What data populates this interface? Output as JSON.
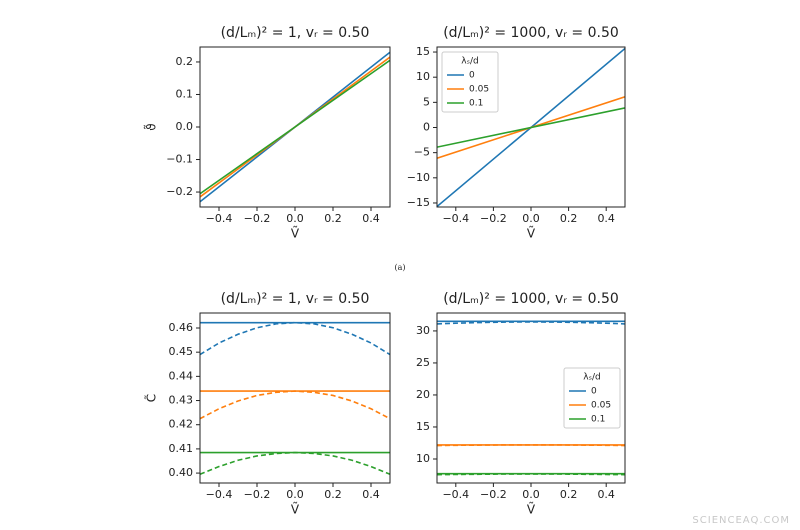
{
  "chart_data": [
    {
      "type": "line",
      "title": "(d/Lₘ)² = 1, vᵣ = 0.50",
      "x_label": "Ṽ",
      "y_label": "ϑ̃",
      "x": [
        -0.5,
        0.5
      ],
      "xlim": [
        -0.5,
        0.5
      ],
      "ylim": [
        -0.246,
        0.246
      ],
      "xticks": [
        {
          "value": -0.4,
          "label": "−0.4"
        },
        {
          "value": -0.2,
          "label": "−0.2"
        },
        {
          "value": 0,
          "label": "0.0"
        },
        0.2,
        0.4
      ],
      "yticks": [
        {
          "value": -0.2,
          "label": "−0.2"
        },
        {
          "value": -0.1,
          "label": "−0.1"
        },
        {
          "value": 0,
          "label": "0.0"
        },
        0.1,
        0.2
      ],
      "series": [
        {
          "color": "#1f77b4",
          "values": [
            -0.23,
            0.23
          ]
        },
        {
          "color": "#ff7f0e",
          "values": [
            -0.215,
            0.215
          ]
        },
        {
          "color": "#2ca02c",
          "values": [
            -0.205,
            0.205
          ]
        }
      ]
    },
    {
      "type": "line",
      "title": "(d/Lₘ)² = 1000, vᵣ = 0.50",
      "x_label": "Ṽ",
      "x": [
        -0.5,
        0.5
      ],
      "xlim": [
        -0.5,
        0.5
      ],
      "ylim": [
        -15.8,
        16.0
      ],
      "xticks": [
        {
          "value": -0.4,
          "label": "−0.4"
        },
        {
          "value": -0.2,
          "label": "−0.2"
        },
        {
          "value": 0,
          "label": "0.0"
        },
        0.2,
        0.4
      ],
      "yticks": [
        {
          "value": -15,
          "label": "−15"
        },
        {
          "value": -10,
          "label": "−10"
        },
        {
          "value": -5,
          "label": "−5"
        },
        0,
        5,
        10,
        15
      ],
      "legend": "upper left",
      "legend_title": "λₛ/d",
      "series": [
        {
          "name": "0",
          "color": "#1f77b4",
          "values": [
            -15.7,
            15.7
          ]
        },
        {
          "name": "0.05",
          "color": "#ff7f0e",
          "values": [
            -6.1,
            6.1
          ]
        },
        {
          "name": "0.1",
          "color": "#2ca02c",
          "values": [
            -3.9,
            3.9
          ]
        }
      ]
    },
    {
      "type": "line",
      "title": "(d/Lₘ)² = 1, vᵣ = 0.50",
      "x_label": "Ṽ",
      "y_label": "C̃",
      "x": [
        -0.5,
        -0.4,
        -0.3,
        -0.2,
        -0.1,
        0,
        0.1,
        0.2,
        0.3,
        0.4,
        0.5
      ],
      "xlim": [
        -0.5,
        0.5
      ],
      "ylim": [
        0.3959,
        0.4662
      ],
      "xticks": [
        {
          "value": -0.4,
          "label": "−0.4"
        },
        {
          "value": -0.2,
          "label": "−0.2"
        },
        {
          "value": 0,
          "label": "0.0"
        },
        0.2,
        0.4
      ],
      "yticks": [
        {
          "value": 0.4,
          "label": "0.40"
        },
        0.41,
        0.42,
        0.43,
        0.44,
        0.45,
        0.46
      ],
      "series": [
        {
          "color": "#1f77b4",
          "values": [
            0.4622,
            0.4622,
            0.4622,
            0.4622,
            0.4622,
            0.4622,
            0.4622,
            0.4622,
            0.4622,
            0.4622,
            0.4622
          ]
        },
        {
          "color": "#ff7f0e",
          "values": [
            0.4339,
            0.4339,
            0.4339,
            0.4339,
            0.4339,
            0.4339,
            0.4339,
            0.4339,
            0.4339,
            0.4339,
            0.4339
          ]
        },
        {
          "color": "#2ca02c",
          "values": [
            0.4085,
            0.4085,
            0.4085,
            0.4085,
            0.4085,
            0.4085,
            0.4085,
            0.4085,
            0.4085,
            0.4085,
            0.4085
          ]
        },
        {
          "color": "#1f77b4",
          "style": "dashed",
          "values": [
            0.449,
            0.4538,
            0.4574,
            0.4601,
            0.4617,
            0.4622,
            0.4617,
            0.4601,
            0.4574,
            0.4538,
            0.449
          ]
        },
        {
          "color": "#ff7f0e",
          "style": "dashed",
          "values": [
            0.4225,
            0.4266,
            0.4298,
            0.4321,
            0.4334,
            0.4339,
            0.4334,
            0.4321,
            0.4298,
            0.4266,
            0.4225
          ]
        },
        {
          "color": "#2ca02c",
          "style": "dashed",
          "values": [
            0.3995,
            0.4027,
            0.4053,
            0.4071,
            0.4081,
            0.4085,
            0.4081,
            0.4071,
            0.4053,
            0.4027,
            0.3995
          ]
        }
      ]
    },
    {
      "type": "line",
      "title": "(d/Lₘ)² = 1000, vᵣ = 0.50",
      "x_label": "Ṽ",
      "x": [
        -0.5,
        -0.4,
        -0.3,
        -0.2,
        -0.1,
        0,
        0.1,
        0.2,
        0.3,
        0.4,
        0.5
      ],
      "xlim": [
        -0.5,
        0.5
      ],
      "ylim": [
        6.25,
        32.8
      ],
      "xticks": [
        {
          "value": -0.4,
          "label": "−0.4"
        },
        {
          "value": -0.2,
          "label": "−0.2"
        },
        {
          "value": 0,
          "label": "0.0"
        },
        0.2,
        0.4
      ],
      "yticks": [
        10,
        15,
        20,
        25,
        30
      ],
      "legend": "center right",
      "legend_title": "λₛ/d",
      "series": [
        {
          "name": "0",
          "color": "#1f77b4",
          "values": [
            31.5,
            31.5,
            31.5,
            31.5,
            31.5,
            31.5,
            31.5,
            31.5,
            31.5,
            31.5,
            31.5
          ]
        },
        {
          "name": "0.05",
          "color": "#ff7f0e",
          "values": [
            12.2,
            12.2,
            12.2,
            12.2,
            12.2,
            12.2,
            12.2,
            12.2,
            12.2,
            12.2,
            12.2
          ]
        },
        {
          "name": "0.1",
          "color": "#2ca02c",
          "values": [
            7.7,
            7.7,
            7.7,
            7.7,
            7.7,
            7.7,
            7.7,
            7.7,
            7.7,
            7.7,
            7.7
          ]
        },
        {
          "color": "#1f77b4",
          "style": "dashed",
          "values": [
            31.1,
            31.21,
            31.29,
            31.35,
            31.39,
            31.4,
            31.39,
            31.35,
            31.29,
            31.21,
            31.1
          ]
        },
        {
          "color": "#ff7f0e",
          "style": "dashed",
          "values": [
            12.1,
            12.14,
            12.16,
            12.18,
            12.2,
            12.2,
            12.2,
            12.18,
            12.16,
            12.14,
            12.1
          ]
        },
        {
          "color": "#2ca02c",
          "style": "dashed",
          "values": [
            7.55,
            7.58,
            7.61,
            7.63,
            7.65,
            7.65,
            7.65,
            7.63,
            7.61,
            7.58,
            7.55
          ]
        }
      ]
    }
  ],
  "caption": "(a)",
  "watermark": "SCIENCEAQ.COM"
}
